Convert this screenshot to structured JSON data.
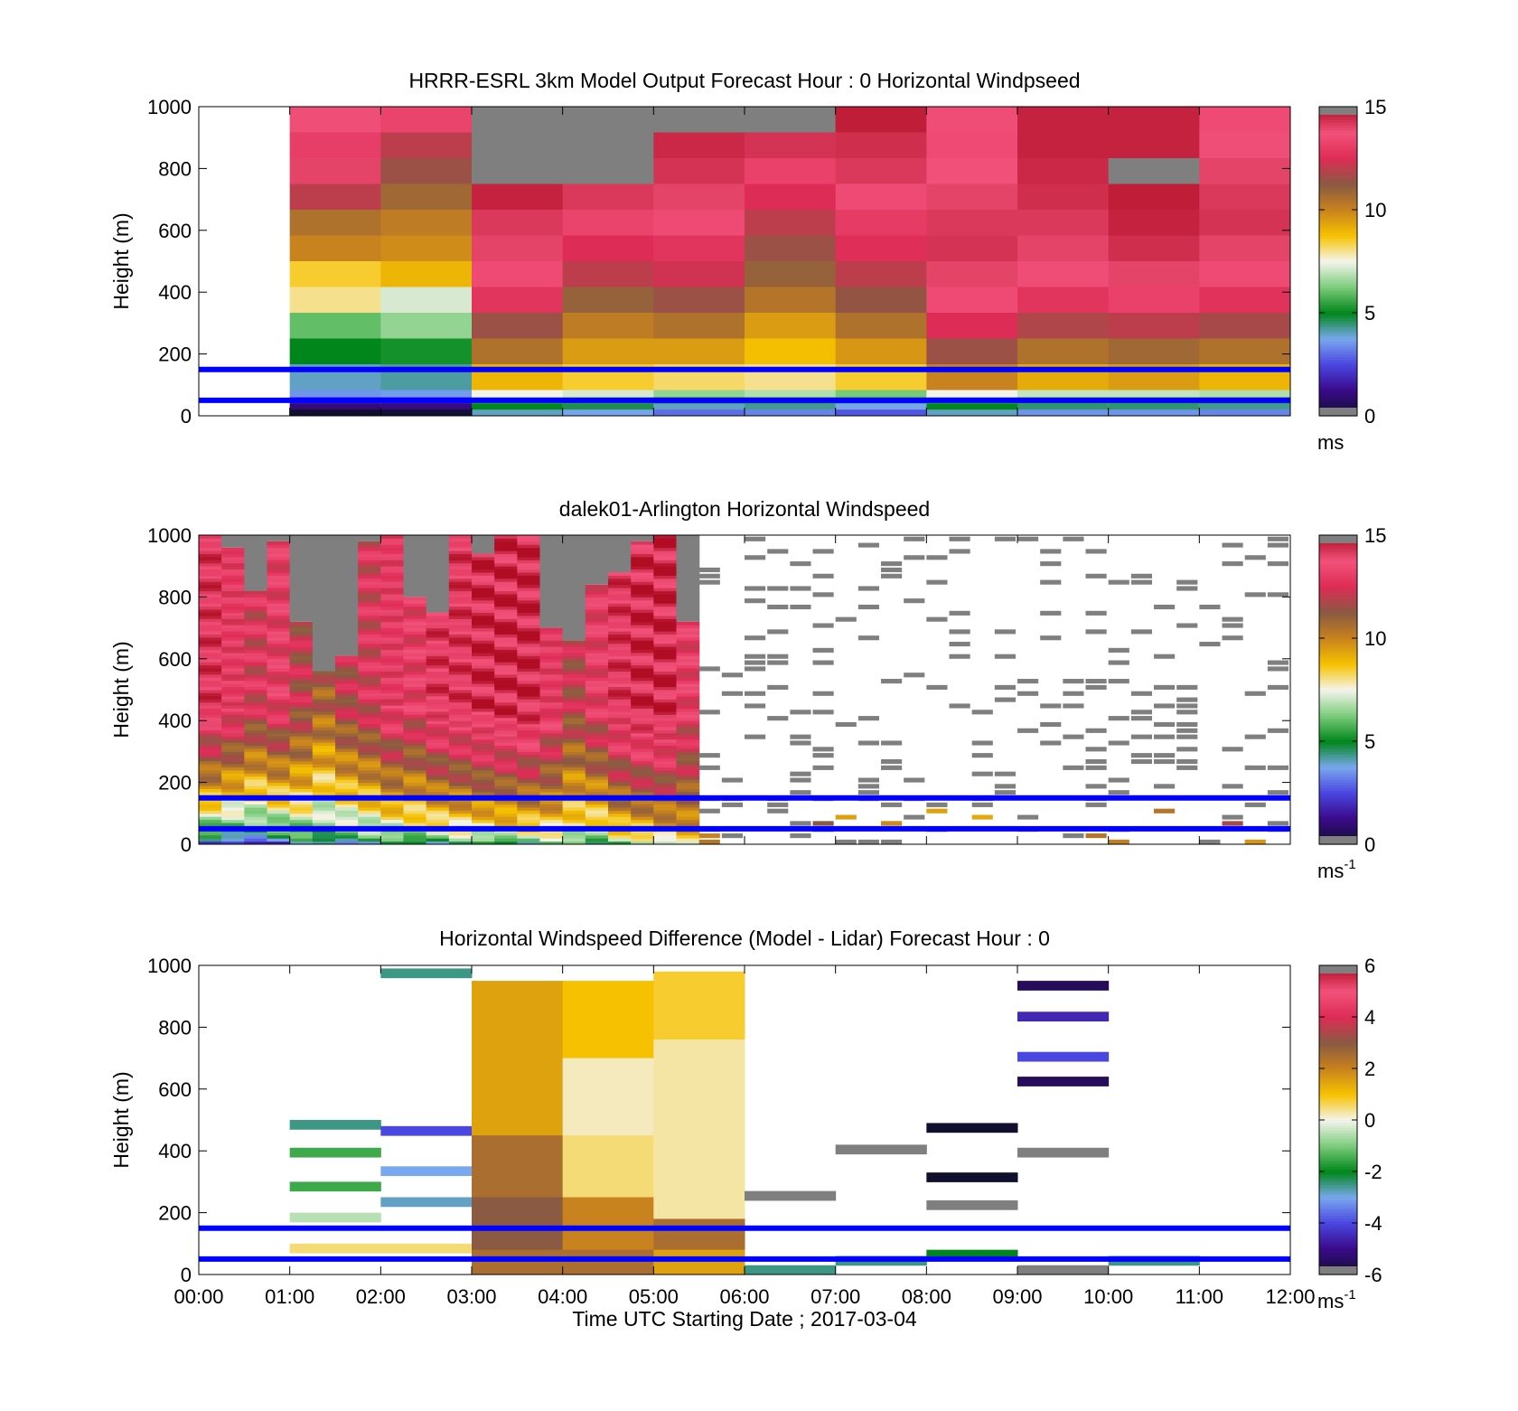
{
  "colors": {
    "no_data": "#7f7f7f",
    "reference_lines": "#0000ff",
    "windspeed_colormap": [
      "#10102e",
      "#3a0a8a",
      "#4a46e0",
      "#78a8ee",
      "#00861a",
      "#7ccc7c",
      "#f4f4ec",
      "#f6c200",
      "#c8821e",
      "#8a5a42",
      "#dd2c55",
      "#f2527a",
      "#b00c24"
    ],
    "difference_colormap": [
      "#10102e",
      "#3a0a8a",
      "#4a46e0",
      "#78a8ee",
      "#00861a",
      "#7ccc7c",
      "#f4f4ec",
      "#f6c200",
      "#c8821e",
      "#8a5a42",
      "#dd2c55",
      "#f2527a",
      "#b00c24"
    ]
  },
  "xaxis": {
    "label": "Time UTC  Starting Date ; 2017-03-04",
    "ticks": [
      "00:00",
      "01:00",
      "02:00",
      "03:00",
      "04:00",
      "05:00",
      "06:00",
      "07:00",
      "08:00",
      "09:00",
      "10:00",
      "11:00",
      "12:00"
    ]
  },
  "chart_data": [
    {
      "type": "heatmap",
      "title": "HRRR-ESRL 3km Model Output   Forecast Hour : 0 Horizontal Windpseed",
      "ylabel": "Height (m)",
      "xlabel": "",
      "xlim": [
        0,
        12
      ],
      "ylim": [
        0,
        1000
      ],
      "yticks": [
        "0",
        "200",
        "400",
        "600",
        "800",
        "1000"
      ],
      "reference_heights_m": [
        50,
        150
      ],
      "colorbar": {
        "min": 0,
        "max": 15,
        "ticks": [
          "0",
          "5",
          "10",
          "15"
        ],
        "unit": "ms"
      },
      "columns_hours": [
        1,
        2,
        3,
        4,
        5,
        6,
        7,
        8,
        9,
        10,
        11
      ],
      "rows_m": [
        1000,
        900,
        800,
        700,
        600,
        500,
        450,
        400,
        350,
        300,
        250,
        200,
        150,
        100,
        50
      ],
      "speed_ms": [
        [
          13.8,
          13.1,
          14.0,
          12.0,
          10.5,
          10.0,
          8.5,
          8.0,
          6.0,
          5.0,
          4.0,
          3.5
        ],
        [
          13.3,
          12.0,
          11.5,
          10.8,
          10.2,
          9.8,
          9.0,
          7.2,
          6.5,
          5.2,
          4.2,
          3.6
        ],
        [
          null,
          null,
          null,
          14.6,
          14.2,
          14.0,
          13.5,
          12.8,
          11.5,
          10.5,
          9.0,
          7.5
        ],
        [
          null,
          null,
          null,
          14.2,
          13.3,
          12.5,
          12.0,
          11.0,
          10.2,
          9.5,
          8.5,
          7.2
        ],
        [
          null,
          14.5,
          14.3,
          14.0,
          13.5,
          12.8,
          12.3,
          11.5,
          10.5,
          9.5,
          8.2,
          6.5
        ],
        [
          null,
          14.3,
          13.2,
          12.5,
          12.0,
          11.5,
          11.0,
          10.4,
          9.5,
          8.8,
          8.0,
          6.8
        ],
        [
          14.7,
          14.4,
          14.2,
          13.5,
          13.0,
          12.6,
          12.0,
          11.4,
          10.5,
          9.6,
          8.5,
          6.2
        ],
        [
          13.6,
          13.5,
          13.7,
          14.0,
          14.2,
          14.3,
          14.0,
          13.5,
          12.5,
          11.5,
          10.0,
          7.5
        ],
        [
          14.6,
          14.6,
          14.5,
          14.4,
          14.2,
          14.0,
          13.6,
          12.8,
          11.8,
          10.5,
          9.2,
          7.0
        ],
        [
          14.6,
          14.6,
          null,
          14.7,
          14.6,
          14.4,
          14.0,
          13.2,
          12.0,
          10.8,
          9.5,
          7.0
        ],
        [
          13.5,
          13.8,
          14.0,
          14.2,
          14.3,
          14.0,
          13.5,
          12.7,
          11.7,
          10.5,
          9.0,
          6.8
        ]
      ]
    },
    {
      "type": "heatmap",
      "title": "dalek01-Arlington  Horizontal Windspeed",
      "ylabel": "Height (m)",
      "xlabel": "",
      "xlim": [
        0,
        12
      ],
      "ylim": [
        0,
        1000
      ],
      "yticks": [
        "0",
        "200",
        "400",
        "600",
        "800",
        "1000"
      ],
      "reference_heights_m": [
        50,
        150
      ],
      "colorbar": {
        "min": 0,
        "max": 15,
        "ticks": [
          "0",
          "5",
          "10",
          "15"
        ],
        "unit": "ms-1"
      },
      "profiles": {
        "start_hours": [
          0.0,
          0.25,
          0.5,
          0.75,
          1.0,
          1.25,
          1.5,
          1.75,
          2.0,
          2.25,
          2.5,
          2.75,
          3.0,
          3.25,
          3.5,
          3.75,
          4.0,
          4.25,
          4.5,
          4.75,
          5.0,
          5.25
        ],
        "top_heights_m": [
          1000,
          960,
          820,
          980,
          720,
          560,
          610,
          980,
          1000,
          800,
          750,
          1000,
          940,
          1000,
          1000,
          700,
          660,
          840,
          880,
          980,
          1000,
          720
        ],
        "surface_speed_ms": [
          2.0,
          1.5,
          2.0,
          2.5,
          3.5,
          3.5,
          3.8,
          4.0,
          4.0,
          4.5,
          4.5,
          4.8,
          4.5,
          5.0,
          5.0,
          5.5,
          5.5,
          5.0,
          6.0,
          6.0,
          6.5,
          8.0
        ],
        "aloft_speed_ms": [
          14.0,
          13.5,
          12.5,
          13.0,
          12.0,
          11.0,
          12.0,
          12.5,
          13.5,
          13.0,
          14.0,
          14.0,
          14.5,
          14.5,
          14.5,
          13.5,
          12.0,
          13.0,
          14.0,
          14.5,
          14.5,
          13.0
        ]
      },
      "sparse_returns": "scattered mostly missing (gray/white) returns from 05:30 to 12:00, with low-level speeds 8-14 ms-1 near 9:00-12:00"
    },
    {
      "type": "heatmap",
      "title": "Horizontal Windspeed Difference (Model - Lidar) Forecast Hour : 0",
      "ylabel": "Height (m)",
      "xlabel": "Time UTC  Starting Date ; 2017-03-04",
      "xlim": [
        0,
        12
      ],
      "ylim": [
        0,
        1000
      ],
      "yticks": [
        "0",
        "200",
        "400",
        "600",
        "800",
        "1000"
      ],
      "reference_heights_m": [
        50,
        150
      ],
      "colorbar": {
        "min": -6,
        "max": 6,
        "ticks": [
          "-6",
          "-4",
          "-2",
          "0",
          "2",
          "4",
          "6"
        ],
        "unit": "ms-1"
      },
      "hourly_difference_ms": [
        {
          "hour_start": 1,
          "levels_m": [
            500,
            410,
            300,
            200,
            100
          ],
          "values": [
            -2.5,
            -1.5,
            -1.5,
            -0.5,
            0.5
          ]
        },
        {
          "hour_start": 2,
          "levels_m": [
            990,
            480,
            350,
            250,
            100
          ],
          "values": [
            -2.5,
            -4.0,
            -3.0,
            -2.8,
            0.5
          ]
        },
        {
          "hour_start": 3,
          "levels_m": [
            950,
            700,
            450,
            250,
            80
          ],
          "values": [
            1.5,
            1.5,
            2.5,
            3.0,
            2.5
          ]
        },
        {
          "hour_start": 4,
          "levels_m": [
            950,
            700,
            450,
            250,
            80
          ],
          "values": [
            1.0,
            0.2,
            0.5,
            2.0,
            2.5
          ]
        },
        {
          "hour_start": 5,
          "levels_m": [
            980,
            760,
            180,
            80
          ],
          "values": [
            0.8,
            0.3,
            2.5,
            1.5
          ]
        },
        {
          "hour_start": 6,
          "levels_m": [
            270,
            30
          ],
          "values": [
            null,
            -2.5
          ]
        },
        {
          "hour_start": 7,
          "levels_m": [
            420,
            60
          ],
          "values": [
            null,
            -2.5
          ]
        },
        {
          "hour_start": 8,
          "levels_m": [
            490,
            330,
            240,
            80
          ],
          "values": [
            -6.0,
            -6.0,
            null,
            -2.0
          ]
        },
        {
          "hour_start": 9,
          "levels_m": [
            950,
            850,
            720,
            640,
            410,
            30
          ],
          "values": [
            -5.5,
            -4.5,
            -4.0,
            -5.5,
            null,
            null
          ]
        },
        {
          "hour_start": 10,
          "levels_m": [
            60
          ],
          "values": [
            -2.5
          ]
        }
      ]
    }
  ]
}
